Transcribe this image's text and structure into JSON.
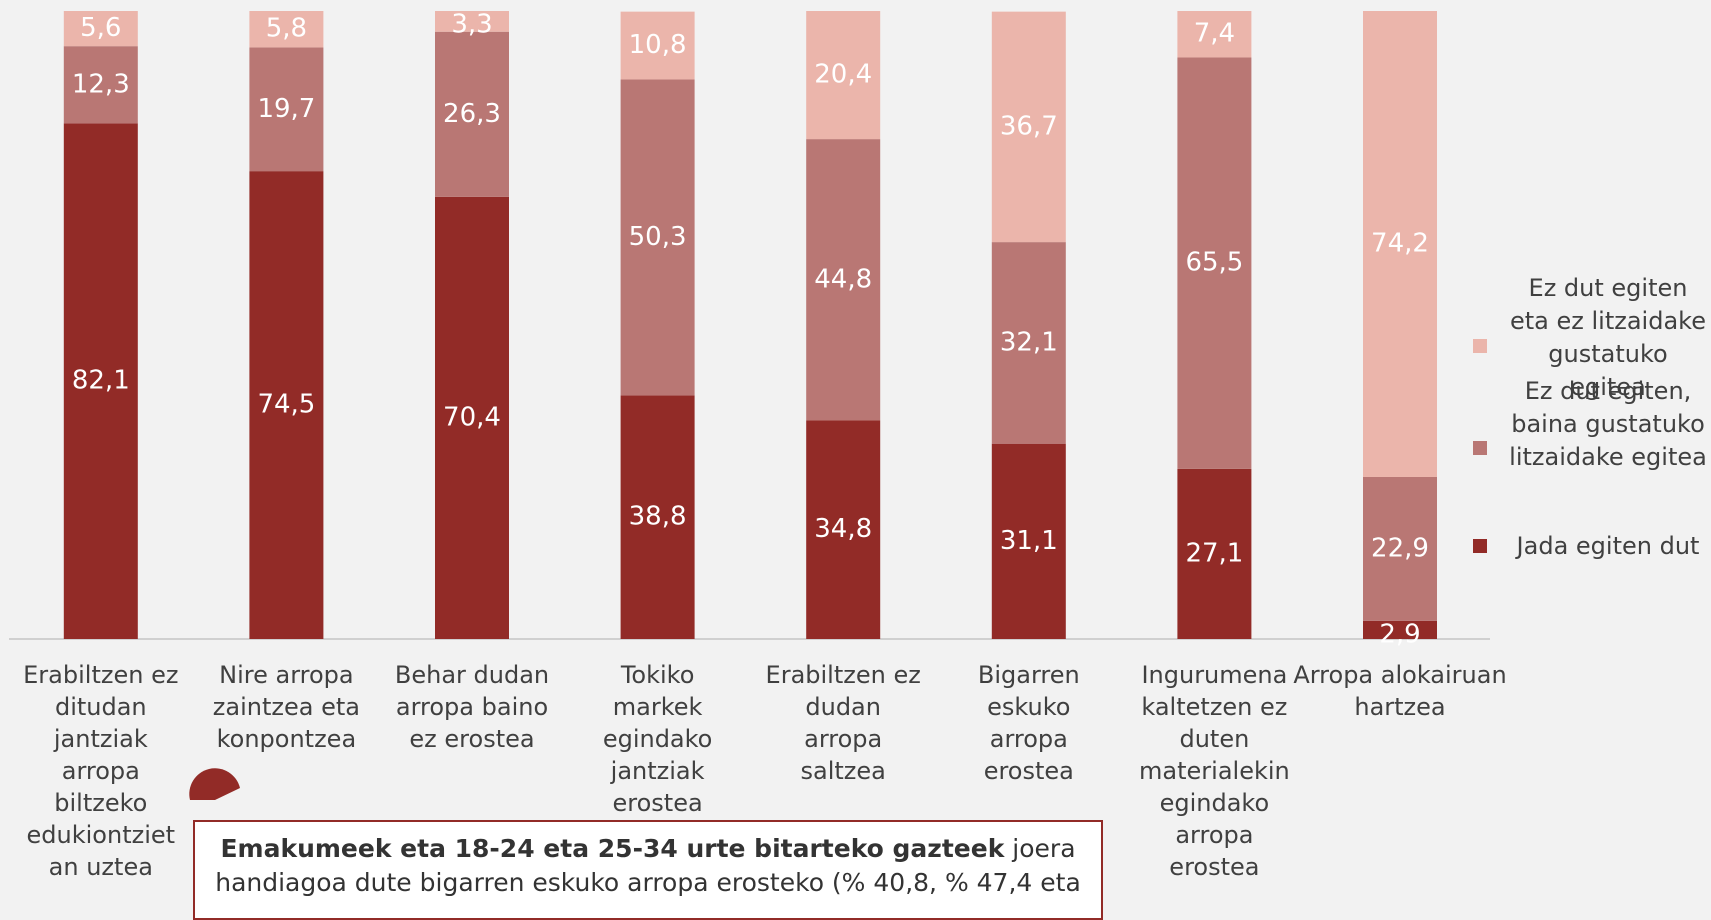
{
  "chart_data": {
    "type": "stacked_bar",
    "categories": [
      "Erabiltzen ez ditudan jantziak arropa biltzeko edukiontzietan uztea",
      "Nire arropa zaintzea eta konpontzea",
      "Behar dudan arropa baino ez erostea",
      "Tokiko markek egindako jantziak erostea",
      "Erabiltzen ez dudan arropa saltzea",
      "Bigarren eskuko arropa erostea",
      "Ingurumena kaltetzen ez duten materialekin egindako arropa erostea",
      "Arropa alokairuan hartzea"
    ],
    "series": [
      {
        "name": "Jada egiten dut",
        "color": "#922b27",
        "values": [
          82.1,
          74.5,
          70.4,
          38.8,
          34.8,
          31.1,
          27.1,
          2.9
        ],
        "value_labels": [
          "82,1",
          "74,5",
          "70,4",
          "38,8",
          "34,8",
          "31,1",
          "27,1",
          "2,9"
        ]
      },
      {
        "name": "Ez dut egiten, baina gustatuko litzaidake egitea",
        "color": "#b97774",
        "values": [
          12.3,
          19.7,
          26.3,
          50.3,
          44.8,
          32.1,
          65.5,
          22.9
        ],
        "value_labels": [
          "12,3",
          "19,7",
          "26,3",
          "50,3",
          "44,8",
          "32,1",
          "65,5",
          "22,9"
        ]
      },
      {
        "name": "Ez dut egiten eta ez litzaidake gustatuko egitea",
        "color": "#ebb5ab",
        "values": [
          5.6,
          5.8,
          3.3,
          10.8,
          20.4,
          36.7,
          7.4,
          74.2
        ],
        "value_labels": [
          "5,6",
          "5,8",
          "3,3",
          "10,8",
          "20,4",
          "36,7",
          "7,4",
          "74,2"
        ]
      }
    ],
    "ylim": [
      0,
      100
    ],
    "legend": "right",
    "annotation": {
      "bold": "Emakumeek eta 18-24 eta 25-34 urte bitarteko gazteek",
      "text": "joera handiagoa dute bigarren eskuko arropa erosteko (% 40,8, % 47,4 eta"
    }
  }
}
